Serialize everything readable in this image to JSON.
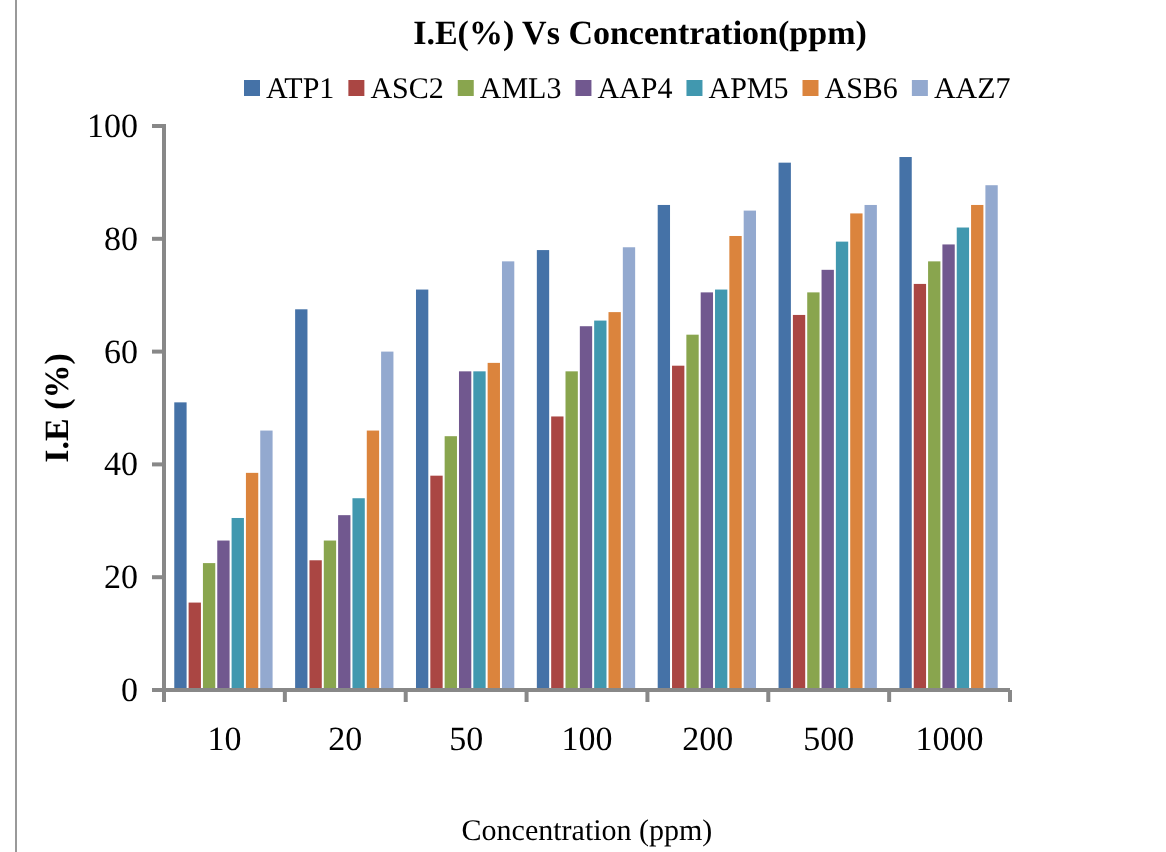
{
  "chart_data": {
    "type": "bar",
    "title": "I.E(%) Vs Concentration(ppm)",
    "xlabel": "Concentration (ppm)",
    "ylabel": "I.E (%)",
    "categories": [
      "10",
      "20",
      "50",
      "100",
      "200",
      "500",
      "1000"
    ],
    "series": [
      {
        "name": "ATP1",
        "color": "#4572a7",
        "values": [
          51,
          67.5,
          71,
          78,
          86,
          93.5,
          94.5
        ]
      },
      {
        "name": "ASC2",
        "color": "#aa4643",
        "values": [
          15.5,
          23,
          38,
          48.5,
          57.5,
          66.5,
          72
        ]
      },
      {
        "name": "AML3",
        "color": "#89a54e",
        "values": [
          22.5,
          26.5,
          45,
          56.5,
          63,
          70.5,
          76
        ]
      },
      {
        "name": "AAP4",
        "color": "#71588f",
        "values": [
          26.5,
          31,
          56.5,
          64.5,
          70.5,
          74.5,
          79
        ]
      },
      {
        "name": "APM5",
        "color": "#4198af",
        "values": [
          30.5,
          34,
          56.5,
          65.5,
          71,
          79.5,
          82
        ]
      },
      {
        "name": "ASB6",
        "color": "#db843d",
        "values": [
          38.5,
          46,
          58,
          67,
          80.5,
          84.5,
          86
        ]
      },
      {
        "name": "AAZ7",
        "color": "#93a9cf",
        "values": [
          46,
          60,
          76,
          78.5,
          85,
          86,
          89.5
        ]
      }
    ],
    "ylim": [
      0,
      100
    ],
    "yticks": [
      0,
      20,
      40,
      60,
      80,
      100
    ],
    "legend": "top right"
  }
}
